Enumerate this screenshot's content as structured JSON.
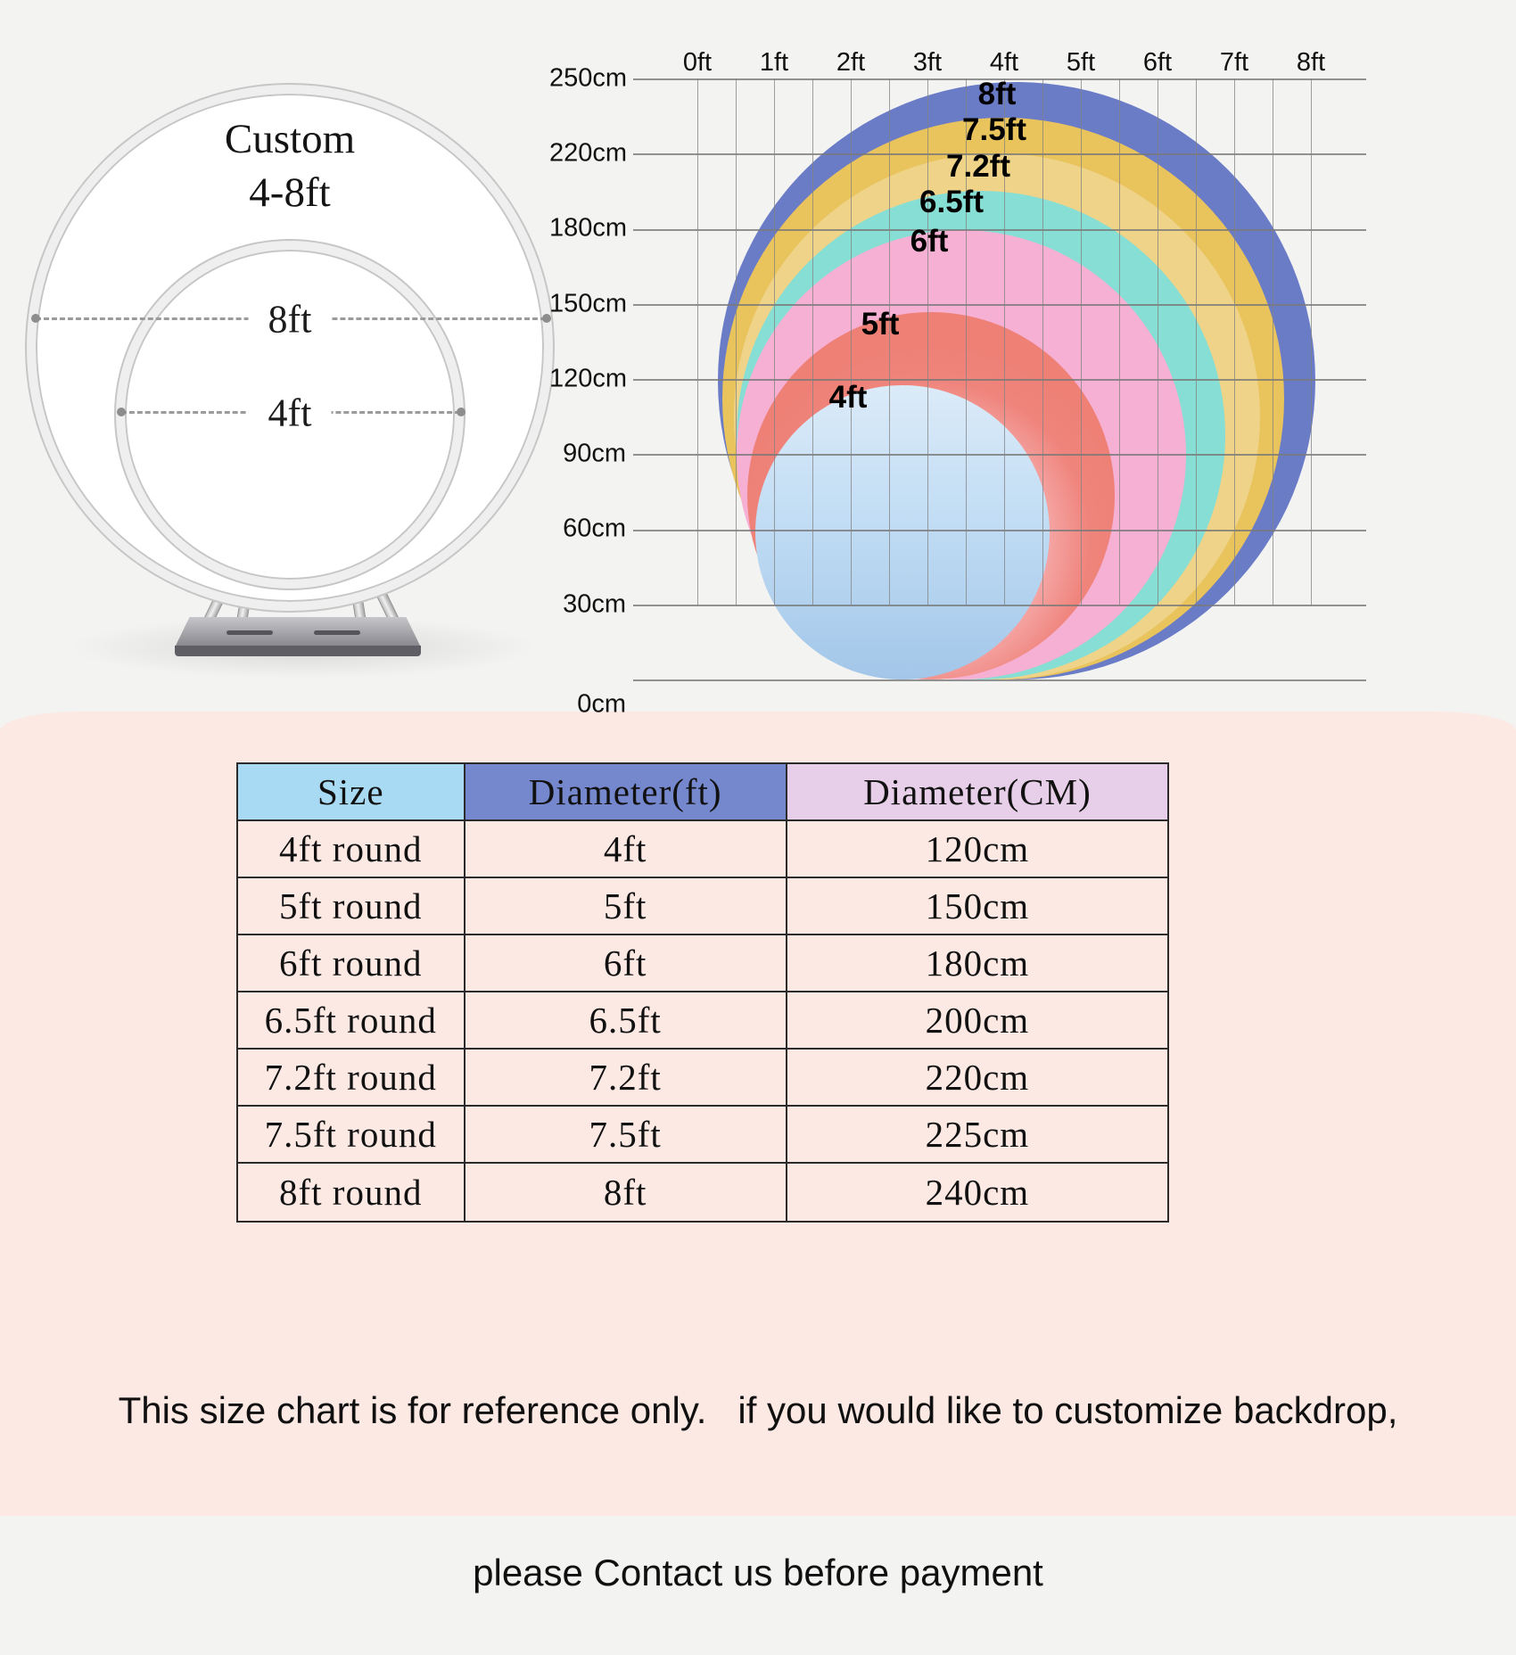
{
  "page": {
    "bg_top": "#f3f3f2",
    "bg_bottom": "#fce9e4"
  },
  "diagram": {
    "title_line1": "Custom",
    "title_line2": "4-8ft",
    "outer_ring_label": "8ft",
    "inner_ring_label": "4ft"
  },
  "size_chart": {
    "x_axis_labels": [
      "0ft",
      "1ft",
      "2ft",
      "3ft",
      "4ft",
      "5ft",
      "6ft",
      "7ft",
      "8ft"
    ],
    "y_axis_labels": [
      "250cm",
      "220cm",
      "180cm",
      "150cm",
      "120cm",
      "90cm",
      "60cm",
      "30cm",
      "0cm"
    ],
    "circles": [
      {
        "label": "8ft",
        "diameter_cm": 240,
        "color": "#6b7cc7"
      },
      {
        "label": "7.5ft",
        "diameter_cm": 225,
        "color": "#e9c35c"
      },
      {
        "label": "7.2ft",
        "diameter_cm": 220,
        "color": "#eed389"
      },
      {
        "label": "6.5ft",
        "diameter_cm": 200,
        "color": "#87ded4"
      },
      {
        "label": "6ft",
        "diameter_cm": 180,
        "color": "#f6b0d4"
      },
      {
        "label": "5ft",
        "diameter_cm": 150,
        "color": "#ee8076"
      },
      {
        "label": "4ft",
        "diameter_cm": 120,
        "color": "#b7d7f2"
      }
    ]
  },
  "chart_data": [
    {
      "type": "area",
      "title": "Round backdrop stand size comparison (nested circles)",
      "x_ticks": [
        "0ft",
        "1ft",
        "2ft",
        "3ft",
        "4ft",
        "5ft",
        "6ft",
        "7ft",
        "8ft"
      ],
      "y_ticks": [
        "0cm",
        "30cm",
        "60cm",
        "90cm",
        "120cm",
        "150cm",
        "180cm",
        "220cm",
        "250cm"
      ],
      "grid": true,
      "legend_position": "none",
      "series": [
        {
          "name": "8ft",
          "diameter_ft": 8,
          "diameter_cm": 240
        },
        {
          "name": "7.5ft",
          "diameter_ft": 7.5,
          "diameter_cm": 225
        },
        {
          "name": "7.2ft",
          "diameter_ft": 7.2,
          "diameter_cm": 220
        },
        {
          "name": "6.5ft",
          "diameter_ft": 6.5,
          "diameter_cm": 200
        },
        {
          "name": "6ft",
          "diameter_ft": 6,
          "diameter_cm": 180
        },
        {
          "name": "5ft",
          "diameter_ft": 5,
          "diameter_cm": 150
        },
        {
          "name": "4ft",
          "diameter_ft": 4,
          "diameter_cm": 120
        }
      ]
    },
    {
      "type": "table",
      "columns": [
        "Size",
        "Diameter(ft)",
        "Diameter(CM)"
      ],
      "rows": [
        [
          "4ft round",
          "4ft",
          "120cm"
        ],
        [
          "5ft round",
          "5ft",
          "150cm"
        ],
        [
          "6ft round",
          "6ft",
          "180cm"
        ],
        [
          "6.5ft round",
          "6.5ft",
          "200cm"
        ],
        [
          "7.2ft round",
          "7.2ft",
          "220cm"
        ],
        [
          "7.5ft round",
          "7.5ft",
          "225cm"
        ],
        [
          "8ft round",
          "8ft",
          "240cm"
        ]
      ]
    }
  ],
  "table": {
    "headers": [
      {
        "label": "Size",
        "bg": "#a9daf3"
      },
      {
        "label": "Diameter(ft)",
        "bg": "#7587cd"
      },
      {
        "label": "Diameter(CM)",
        "bg": "#e8cfe9"
      }
    ],
    "rows": [
      {
        "size": "4ft round",
        "ft": "4ft",
        "cm": "120cm"
      },
      {
        "size": "5ft round",
        "ft": "5ft",
        "cm": "150cm"
      },
      {
        "size": "6ft round",
        "ft": "6ft",
        "cm": "180cm"
      },
      {
        "size": "6.5ft round",
        "ft": "6.5ft",
        "cm": "200cm"
      },
      {
        "size": "7.2ft round",
        "ft": "7.2ft",
        "cm": "220cm"
      },
      {
        "size": "7.5ft round",
        "ft": "7.5ft",
        "cm": "225cm"
      },
      {
        "size": "8ft round",
        "ft": "8ft",
        "cm": "240cm"
      }
    ]
  },
  "footer": {
    "line1": "This size chart is for reference only.   if you would like to customize backdrop,",
    "line2": "please Contact us before payment"
  }
}
